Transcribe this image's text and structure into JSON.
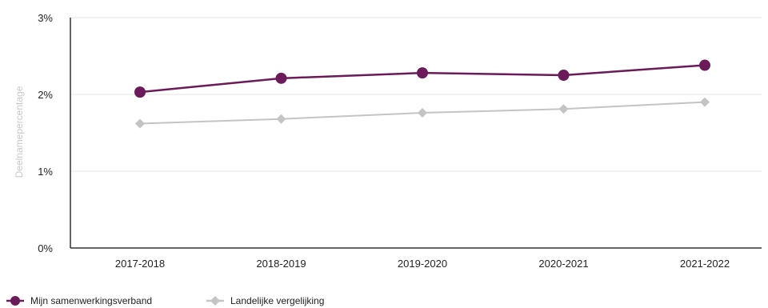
{
  "chart_data": {
    "type": "line",
    "title": "",
    "xlabel": "",
    "ylabel": "Deelnamepercentage",
    "categories": [
      "2017-2018",
      "2018-2019",
      "2019-2020",
      "2020-2021",
      "2021-2022"
    ],
    "y_ticks": [
      "0%",
      "1%",
      "2%",
      "3%"
    ],
    "ylim": [
      0,
      3
    ],
    "grid": true,
    "legend_position": "bottom-left",
    "series": [
      {
        "name": "Mijn samenwerkingsverband",
        "values": [
          2.03,
          2.21,
          2.28,
          2.25,
          2.38
        ],
        "color": "#6b1a5a",
        "marker": "circle"
      },
      {
        "name": "Landelijke vergelijking",
        "values": [
          1.62,
          1.68,
          1.76,
          1.81,
          1.9
        ],
        "color": "#c4c4c4",
        "marker": "diamond"
      }
    ]
  }
}
